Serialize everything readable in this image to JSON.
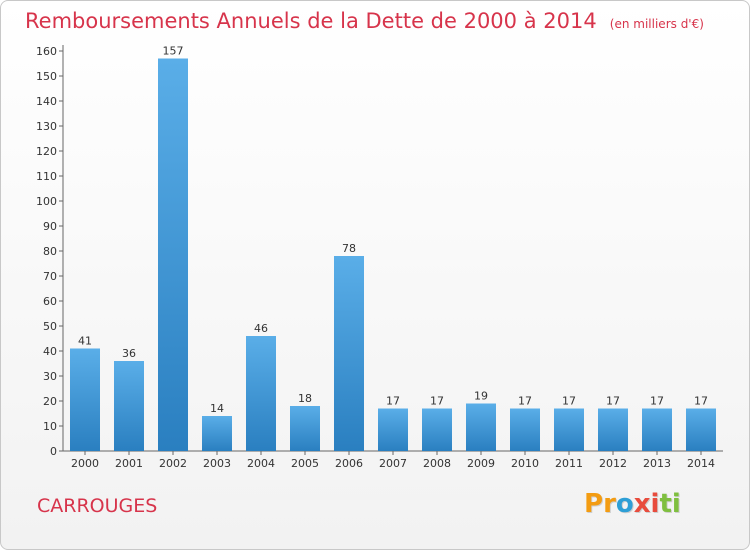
{
  "header": {
    "title": "Remboursements Annuels de la Dette de 2000 à 2014",
    "units": "(en milliers d'€)"
  },
  "footer": {
    "commune": "CARROUGES",
    "logo_text": "Proxiti",
    "logo_colors": [
      "#f39c12",
      "#f39c12",
      "#2e9fd6",
      "#e84c3d",
      "#e84c3d",
      "#7fbf3f",
      "#7fbf3f"
    ]
  },
  "chart_data": {
    "type": "bar",
    "categories": [
      "2000",
      "2001",
      "2002",
      "2003",
      "2004",
      "2005",
      "2006",
      "2007",
      "2008",
      "2009",
      "2010",
      "2011",
      "2012",
      "2013",
      "2014"
    ],
    "values": [
      41,
      36,
      157,
      14,
      46,
      18,
      78,
      17,
      17,
      19,
      17,
      17,
      17,
      17,
      17
    ],
    "ylim": [
      0,
      160
    ],
    "yticks": [
      0,
      10,
      20,
      30,
      40,
      50,
      60,
      70,
      80,
      90,
      100,
      110,
      120,
      130,
      140,
      150,
      160
    ],
    "grid": false,
    "bar_color_top": "#5aaee8",
    "bar_color_bottom": "#2a7fc0",
    "axis_color": "#666666"
  }
}
